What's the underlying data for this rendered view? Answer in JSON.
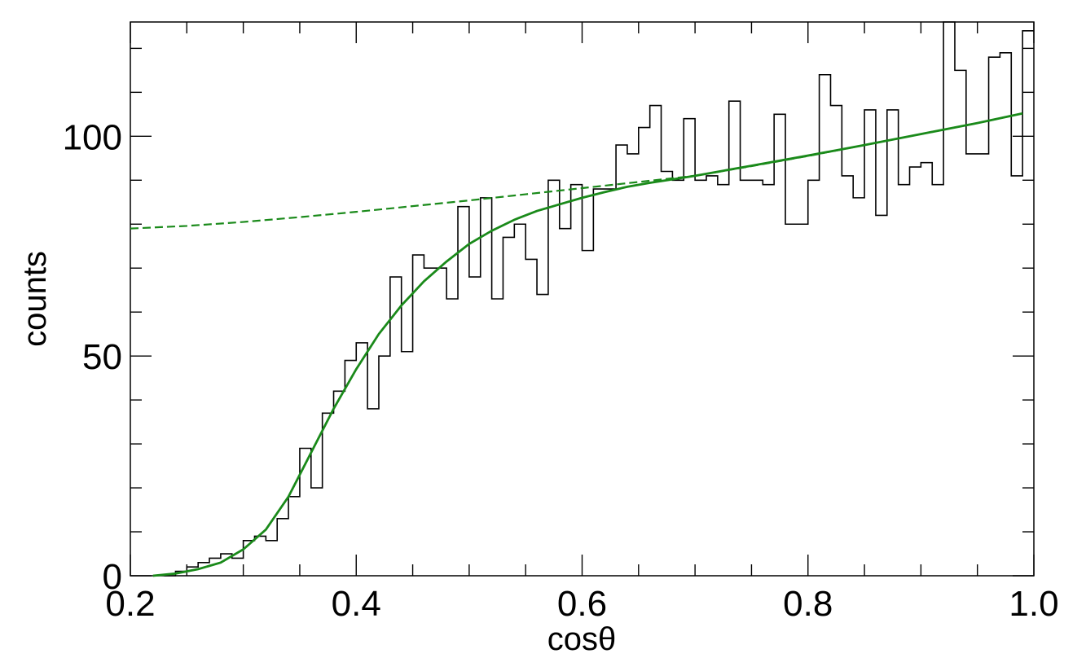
{
  "chart_data": {
    "type": "line",
    "title": "",
    "xlabel": "cosθ",
    "ylabel": "counts",
    "xlim": [
      0.2,
      1.0
    ],
    "ylim": [
      0,
      126
    ],
    "x_ticks": [
      "0.2",
      "0.4",
      "0.6",
      "0.8",
      "1.0"
    ],
    "y_ticks": [
      "0",
      "50",
      "100"
    ],
    "grid": false,
    "legend": "none",
    "colors": {
      "histogram": "#000000",
      "fit": "#1a8a1a",
      "axis": "#000000"
    },
    "series": [
      {
        "kind": "histogram-step",
        "bin_width": 0.01,
        "x": [
          0.23,
          0.24,
          0.25,
          0.26,
          0.27,
          0.28,
          0.29,
          0.3,
          0.31,
          0.32,
          0.33,
          0.34,
          0.35,
          0.36,
          0.37,
          0.38,
          0.39,
          0.4,
          0.41,
          0.42,
          0.43,
          0.44,
          0.45,
          0.46,
          0.47,
          0.48,
          0.49,
          0.5,
          0.51,
          0.52,
          0.53,
          0.54,
          0.55,
          0.56,
          0.57,
          0.58,
          0.59,
          0.6,
          0.61,
          0.62,
          0.63,
          0.64,
          0.65,
          0.66,
          0.67,
          0.68,
          0.69,
          0.7,
          0.71,
          0.72,
          0.73,
          0.74,
          0.75,
          0.76,
          0.77,
          0.78,
          0.79,
          0.8,
          0.81,
          0.82,
          0.83,
          0.84,
          0.85,
          0.86,
          0.87,
          0.88,
          0.89,
          0.9,
          0.91,
          0.92,
          0.93,
          0.94,
          0.95,
          0.96,
          0.97,
          0.98,
          0.99
        ],
        "y": [
          0,
          1,
          2,
          3,
          4,
          5,
          4,
          8,
          9,
          8,
          13,
          18,
          29,
          20,
          37,
          42,
          49,
          53,
          38,
          50,
          68,
          51,
          73,
          70,
          70,
          63,
          84,
          68,
          86,
          63,
          77,
          80,
          72,
          64,
          90,
          79,
          89,
          74,
          88,
          88,
          98,
          96,
          102,
          107,
          92,
          90,
          104,
          90,
          91,
          89,
          108,
          90,
          90,
          89,
          105,
          80,
          80,
          90,
          114,
          107,
          91,
          86,
          106,
          82,
          106,
          89,
          93,
          94,
          89,
          126,
          115,
          96,
          96,
          118,
          119,
          91,
          124
        ]
      },
      {
        "kind": "fit-solid",
        "x": [
          0.22,
          0.24,
          0.26,
          0.28,
          0.3,
          0.32,
          0.34,
          0.36,
          0.38,
          0.4,
          0.42,
          0.44,
          0.46,
          0.48,
          0.5,
          0.52,
          0.54,
          0.56,
          0.58,
          0.6,
          0.62,
          0.64,
          0.66,
          0.68,
          0.7,
          0.75,
          0.8,
          0.85,
          0.9,
          0.95,
          0.99
        ],
        "y": [
          0,
          0.5,
          1.5,
          3,
          6,
          10.5,
          18,
          28,
          38,
          47,
          55,
          61.5,
          67,
          71.5,
          75.5,
          78.5,
          81,
          83,
          84.5,
          86,
          87.3,
          88.5,
          89.4,
          90.2,
          91,
          93.3,
          95.6,
          98,
          100.5,
          103,
          105.2
        ]
      },
      {
        "kind": "fit-dashed",
        "x": [
          0.2,
          0.25,
          0.3,
          0.35,
          0.4,
          0.45,
          0.5,
          0.55,
          0.6,
          0.65,
          0.7,
          0.75,
          0.8,
          0.85,
          0.9,
          0.95,
          0.99
        ],
        "y": [
          79,
          79.6,
          80.5,
          81.6,
          82.8,
          84.1,
          85.4,
          86.8,
          88.2,
          89.6,
          91,
          93.2,
          95.5,
          98,
          100.5,
          103,
          105.2
        ]
      }
    ]
  }
}
